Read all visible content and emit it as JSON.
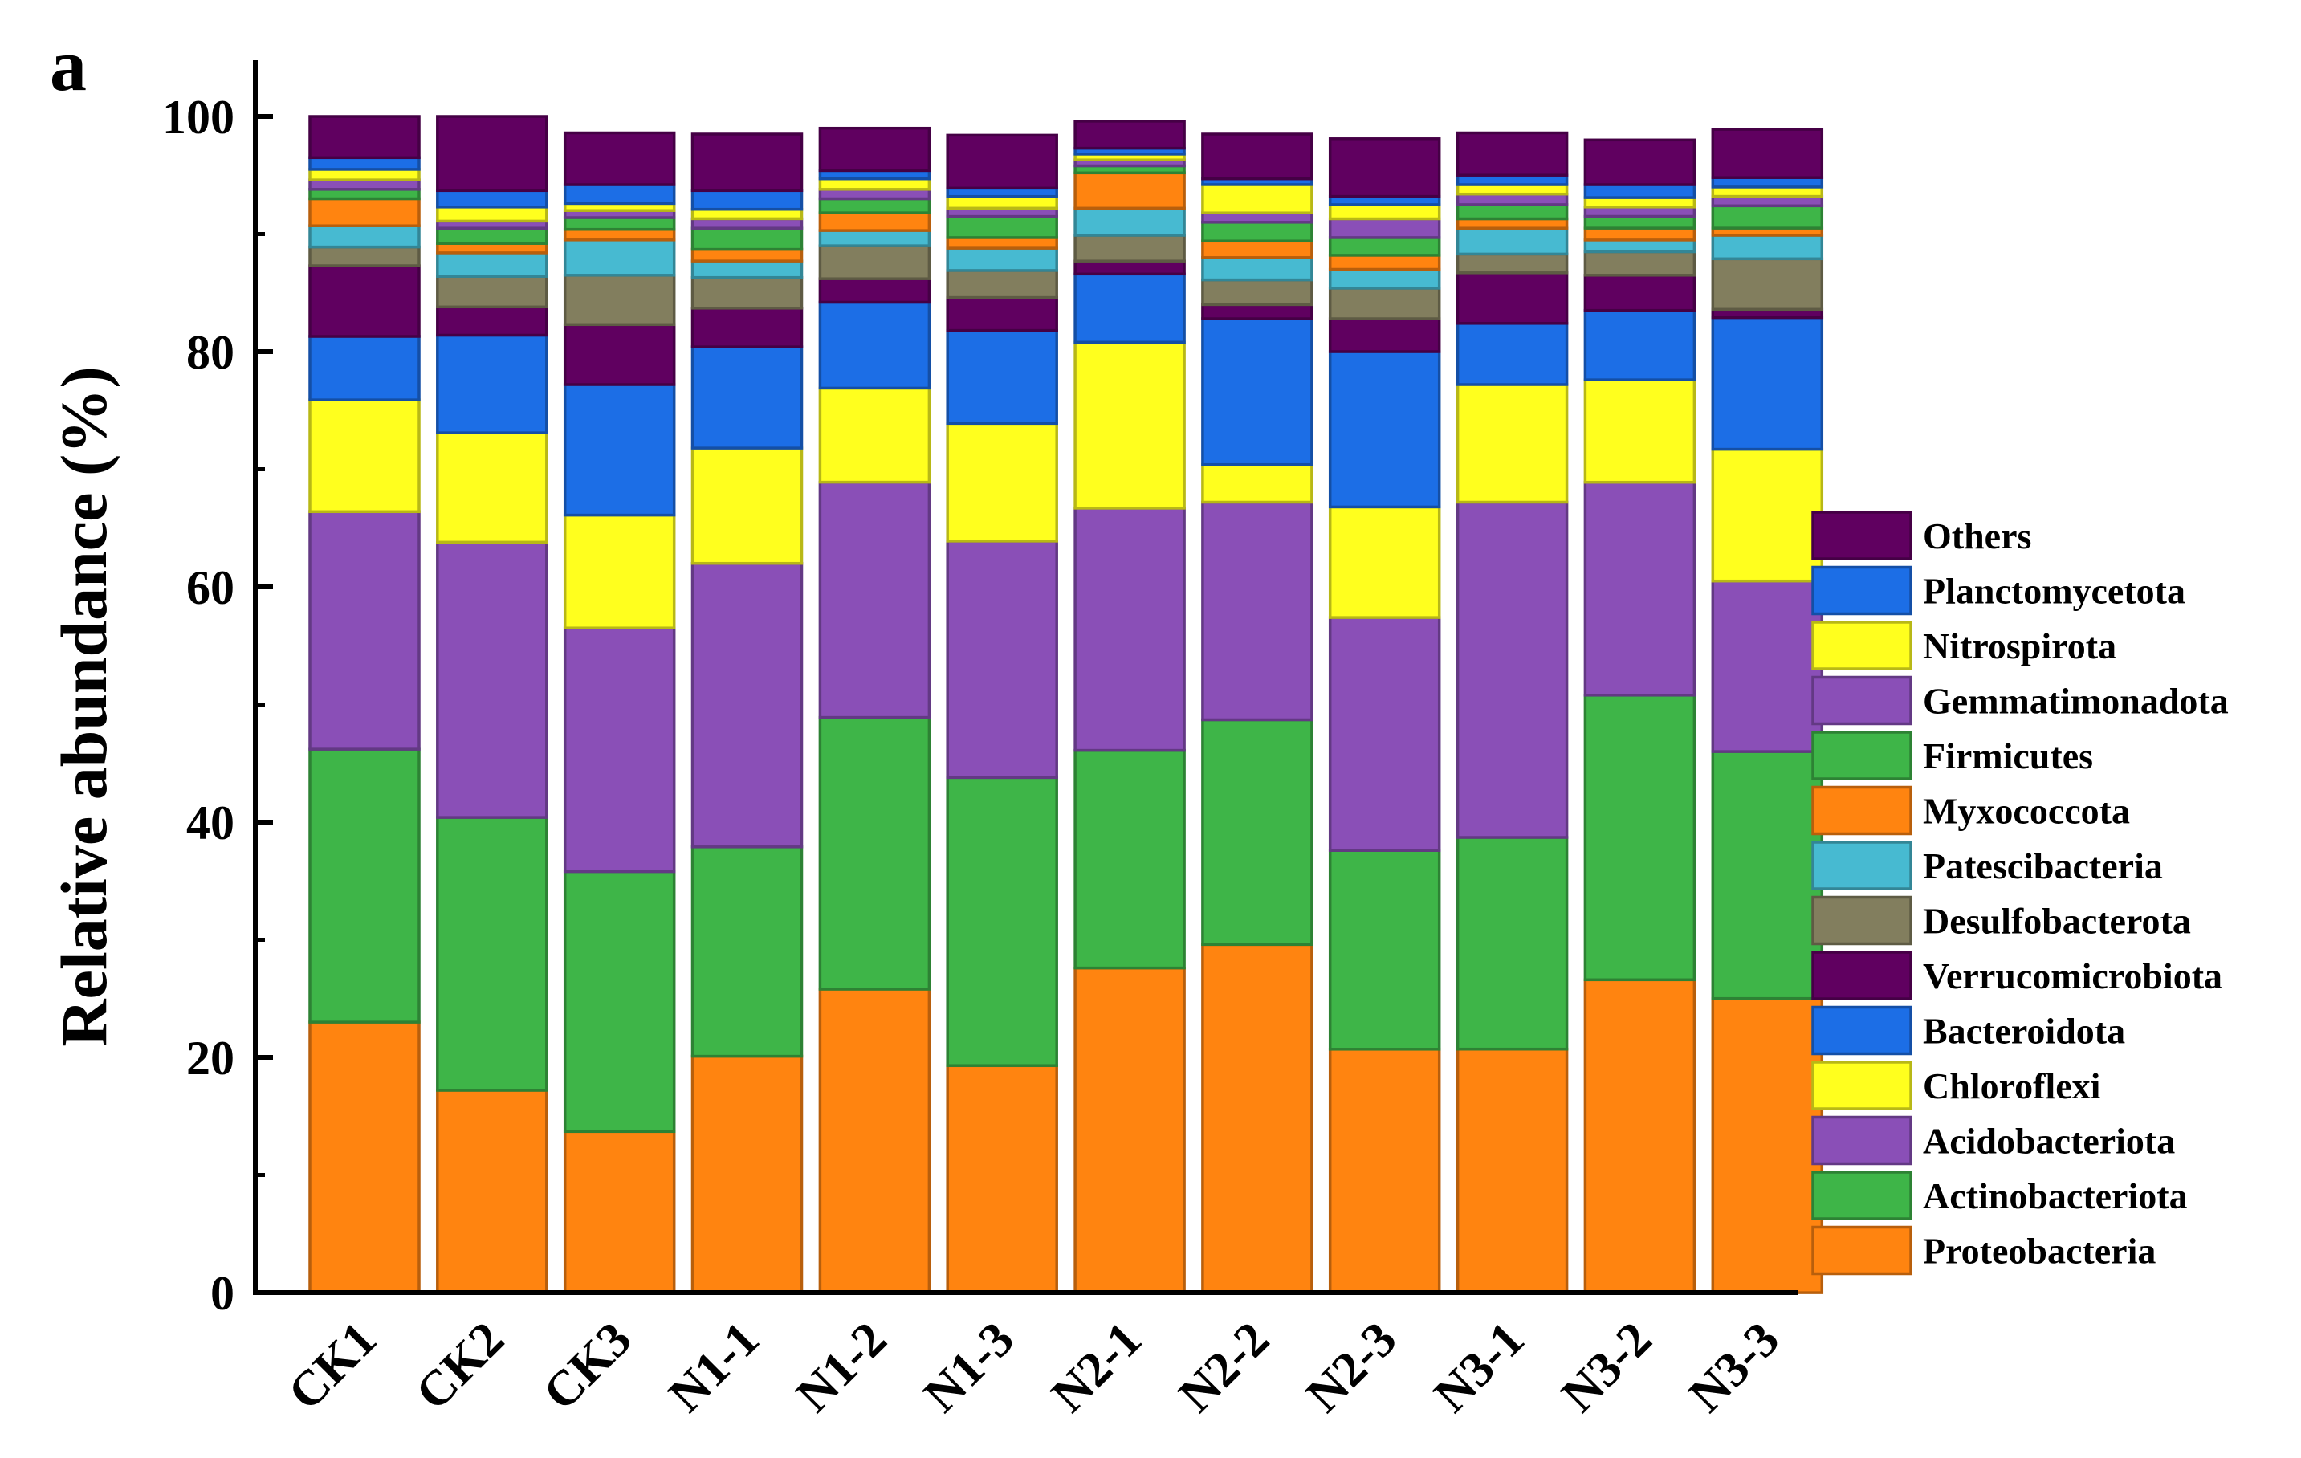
{
  "panel_label": "a",
  "chart_data": {
    "type": "bar",
    "stacked": true,
    "title": "",
    "xlabel": "",
    "ylabel": "Relative abundance (%)",
    "ylim": [
      0,
      100
    ],
    "yticks": [
      "0",
      "20",
      "40",
      "60",
      "80",
      "100"
    ],
    "legend_position": "right",
    "categories": [
      "CK1",
      "CK2",
      "CK3",
      "N1-1",
      "N1-2",
      "N1-3",
      "N2-1",
      "N2-2",
      "N2-3",
      "N3-1",
      "N3-2",
      "N3-3"
    ],
    "series": [
      {
        "name": "Proteobacteria",
        "color": "#FF8410",
        "values": [
          23.0,
          17.2,
          13.7,
          20.1,
          25.8,
          19.3,
          27.6,
          29.6,
          20.7,
          20.7,
          26.6,
          25.0
        ]
      },
      {
        "name": "Actinobacteriota",
        "color": "#3EB548",
        "values": [
          23.2,
          23.2,
          22.1,
          17.8,
          23.1,
          24.5,
          18.5,
          19.1,
          16.9,
          18.0,
          24.2,
          21.0
        ]
      },
      {
        "name": "Acidobacteriota",
        "color": "#8A4FB7",
        "values": [
          20.2,
          23.4,
          20.7,
          24.1,
          20.0,
          20.1,
          20.6,
          18.5,
          19.8,
          28.5,
          18.1,
          14.5
        ]
      },
      {
        "name": "Chloroflexi",
        "color": "#FFFF1E",
        "values": [
          9.5,
          9.3,
          9.6,
          9.8,
          8.0,
          10.0,
          14.1,
          3.2,
          9.4,
          10.0,
          8.7,
          11.2
        ]
      },
      {
        "name": "Bacteroidota",
        "color": "#1C6EE6",
        "values": [
          5.4,
          8.3,
          11.1,
          8.6,
          7.3,
          7.9,
          5.8,
          12.4,
          13.2,
          5.2,
          5.9,
          11.2
        ]
      },
      {
        "name": "Verrucomicrobiota",
        "color": "#600060",
        "values": [
          6.0,
          2.4,
          5.1,
          3.3,
          2.0,
          2.8,
          1.1,
          1.2,
          2.8,
          4.3,
          3.0,
          0.7
        ]
      },
      {
        "name": "Desulfobacterota",
        "color": "#827E5E",
        "values": [
          1.6,
          2.6,
          4.2,
          2.6,
          2.8,
          2.3,
          2.2,
          2.1,
          2.6,
          1.6,
          2.0,
          4.3
        ]
      },
      {
        "name": "Patescibacteria",
        "color": "#47BAD1",
        "values": [
          1.8,
          2.0,
          3.0,
          1.4,
          1.3,
          1.9,
          2.3,
          1.9,
          1.6,
          2.2,
          1.0,
          2.0
        ]
      },
      {
        "name": "Myxococcota",
        "color": "#FF8410",
        "values": [
          2.3,
          0.8,
          0.9,
          1.0,
          1.5,
          0.9,
          3.0,
          1.4,
          1.2,
          0.8,
          1.0,
          0.6
        ]
      },
      {
        "name": "Firmicutes",
        "color": "#3EB548",
        "values": [
          0.8,
          1.3,
          1.0,
          1.8,
          1.2,
          1.8,
          0.6,
          1.6,
          1.5,
          1.2,
          1.0,
          1.9
        ]
      },
      {
        "name": "Gemmatimonadota",
        "color": "#8A4FB7",
        "values": [
          0.8,
          0.6,
          0.6,
          0.8,
          0.8,
          0.7,
          0.5,
          0.8,
          1.6,
          0.9,
          0.8,
          0.8
        ]
      },
      {
        "name": "Nitrospirota",
        "color": "#FFFF1E",
        "values": [
          0.9,
          1.2,
          0.6,
          0.8,
          0.9,
          1.0,
          0.5,
          2.4,
          1.2,
          0.8,
          0.8,
          0.8
        ]
      },
      {
        "name": "Planctomycetota",
        "color": "#1C6EE6",
        "values": [
          1.0,
          1.4,
          1.6,
          1.6,
          0.7,
          0.7,
          0.5,
          0.5,
          0.7,
          0.8,
          1.1,
          0.8
        ]
      },
      {
        "name": "Others",
        "color": "#600060",
        "values": [
          3.5,
          6.3,
          4.4,
          4.8,
          3.6,
          4.5,
          2.3,
          3.8,
          4.9,
          3.6,
          3.8,
          4.1
        ]
      }
    ]
  }
}
